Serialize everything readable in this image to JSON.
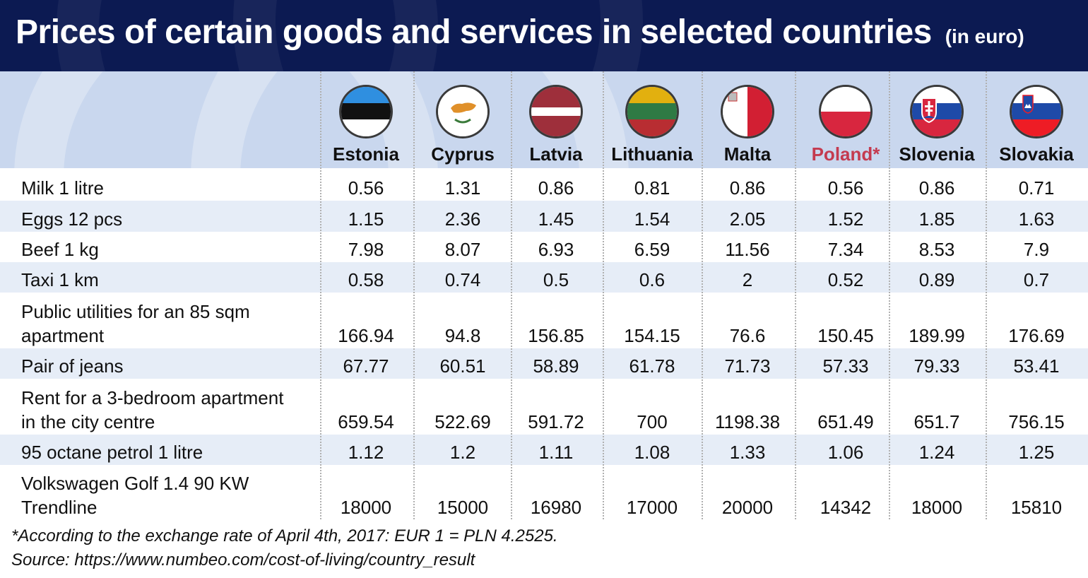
{
  "title": "Prices of certain goods and services in selected countries",
  "title_unit": "(in euro)",
  "colors": {
    "header_bg": "#0c1a52",
    "band_bg": "#c9d7ee",
    "row_alt_bg": "#e6edf7",
    "highlight": "#c43a4f"
  },
  "countries": [
    {
      "name": "Estonia",
      "flag": "estonia-flag-icon"
    },
    {
      "name": "Cyprus",
      "flag": "cyprus-flag-icon"
    },
    {
      "name": "Latvia",
      "flag": "latvia-flag-icon"
    },
    {
      "name": "Lithuania",
      "flag": "lithuania-flag-icon"
    },
    {
      "name": "Malta",
      "flag": "malta-flag-icon"
    },
    {
      "name": "Poland*",
      "flag": "poland-flag-icon",
      "highlight": true
    },
    {
      "name": "Slovenia",
      "flag": "slovakia-flag-icon"
    },
    {
      "name": "Slovakia",
      "flag": "slovenia-flag-icon"
    }
  ],
  "chart_data": {
    "type": "table",
    "title": "Prices of certain goods and services in selected countries (in euro)",
    "columns": [
      "Estonia",
      "Cyprus",
      "Latvia",
      "Lithuania",
      "Malta",
      "Poland*",
      "Slovenia",
      "Slovakia"
    ],
    "rows": [
      {
        "label": [
          "Milk 1 litre"
        ],
        "values": [
          "0.56",
          "1.31",
          "0.86",
          "0.81",
          "0.86",
          "0.56",
          "0.86",
          "0.71"
        ]
      },
      {
        "label": [
          "Eggs 12 pcs"
        ],
        "values": [
          "1.15",
          "2.36",
          "1.45",
          "1.54",
          "2.05",
          "1.52",
          "1.85",
          "1.63"
        ]
      },
      {
        "label": [
          "Beef 1 kg"
        ],
        "values": [
          "7.98",
          "8.07",
          "6.93",
          "6.59",
          "11.56",
          "7.34",
          "8.53",
          "7.9"
        ]
      },
      {
        "label": [
          "Taxi 1 km"
        ],
        "values": [
          "0.58",
          "0.74",
          "0.5",
          "0.6",
          "2",
          "0.52",
          "0.89",
          "0.7"
        ]
      },
      {
        "label": [
          "Public utilities for an 85 sqm",
          "apartment"
        ],
        "values": [
          "166.94",
          "94.8",
          "156.85",
          "154.15",
          "76.6",
          "150.45",
          "189.99",
          "176.69"
        ]
      },
      {
        "label": [
          "Pair of jeans"
        ],
        "values": [
          "67.77",
          "60.51",
          "58.89",
          "61.78",
          "71.73",
          "57.33",
          "79.33",
          "53.41"
        ]
      },
      {
        "label": [
          "Rent for a 3-bedroom apartment",
          "in the city centre"
        ],
        "values": [
          "659.54",
          "522.69",
          "591.72",
          "700",
          "1198.38",
          "651.49",
          "651.7",
          "756.15"
        ]
      },
      {
        "label": [
          "95 octane petrol 1 litre"
        ],
        "values": [
          "1.12",
          "1.2",
          "1.11",
          "1.08",
          "1.33",
          "1.06",
          "1.24",
          "1.25"
        ]
      },
      {
        "label": [
          "Volkswagen Golf 1.4 90 KW",
          "Trendline"
        ],
        "values": [
          "18000",
          "15000",
          "16980",
          "17000",
          "20000",
          "14342",
          "18000",
          "15810"
        ]
      }
    ]
  },
  "footnotes": [
    "*According to the exchange rate of April 4th, 2017: EUR 1 = PLN 4.2525.",
    "Source: https://www.numbeo.com/cost-of-living/country_result"
  ]
}
